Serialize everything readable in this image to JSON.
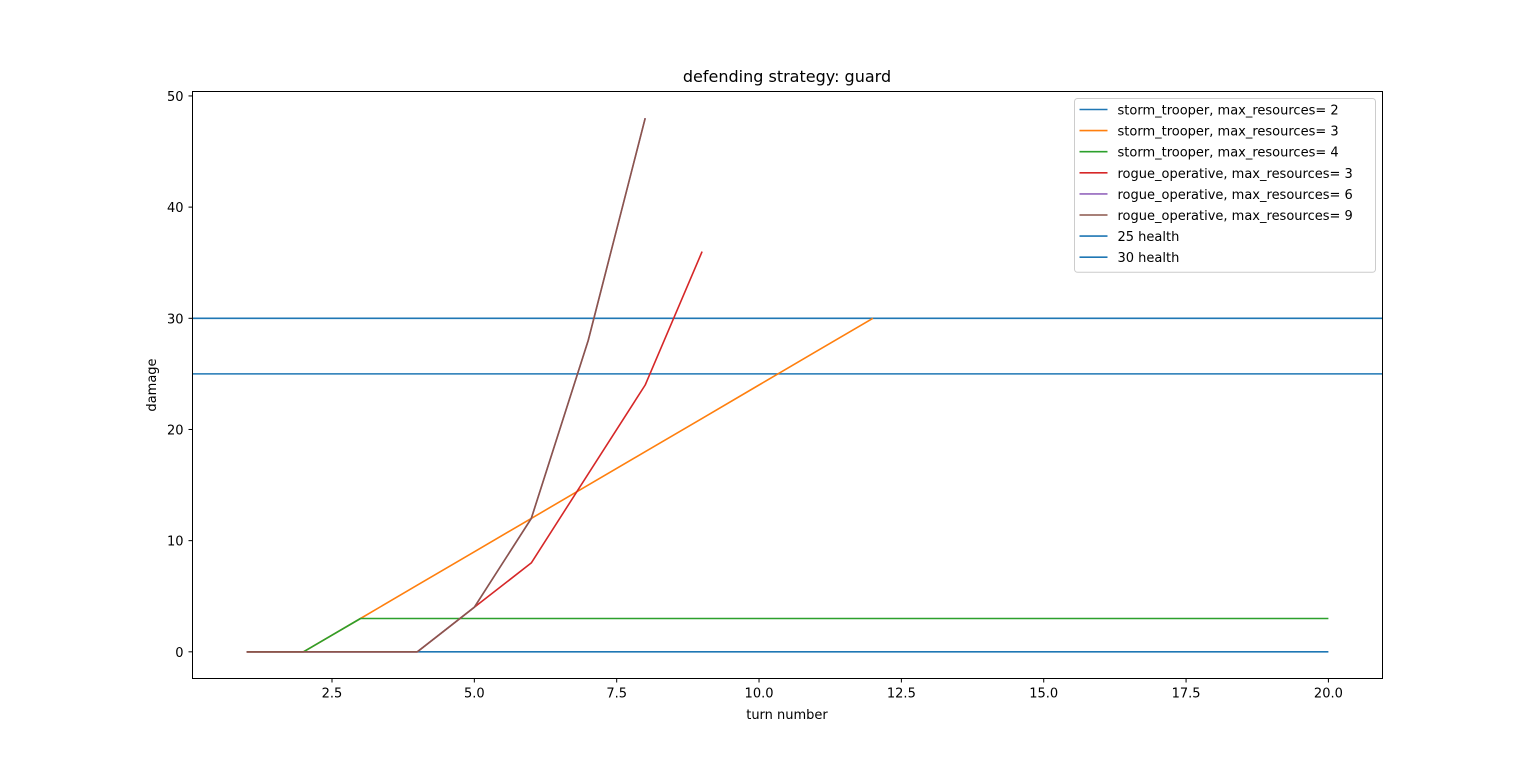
{
  "chart_data": {
    "type": "line",
    "title": "defending strategy: guard",
    "xlabel": "turn number",
    "ylabel": "damage",
    "xlim": [
      0.05,
      20.95
    ],
    "ylim": [
      -2.4,
      50.4
    ],
    "xticks": [
      2.5,
      5.0,
      7.5,
      10.0,
      12.5,
      15.0,
      17.5,
      20.0
    ],
    "xtick_labels": [
      "2.5",
      "5.0",
      "7.5",
      "10.0",
      "12.5",
      "15.0",
      "17.5",
      "20.0"
    ],
    "yticks": [
      0,
      10,
      20,
      30,
      40,
      50
    ],
    "ytick_labels": [
      "0",
      "10",
      "20",
      "30",
      "40",
      "50"
    ],
    "grid": false,
    "legend_position": "top-right",
    "series": [
      {
        "name": "storm_trooper, max_resources= 2",
        "color": "#1f77b4",
        "x": [
          1,
          2,
          3,
          4,
          5,
          6,
          7,
          8,
          9,
          10,
          11,
          12,
          13,
          14,
          15,
          16,
          17,
          18,
          19,
          20
        ],
        "y": [
          0,
          0,
          0,
          0,
          0,
          0,
          0,
          0,
          0,
          0,
          0,
          0,
          0,
          0,
          0,
          0,
          0,
          0,
          0,
          0
        ]
      },
      {
        "name": "storm_trooper, max_resources= 3",
        "color": "#ff7f0e",
        "x": [
          1,
          2,
          3,
          4,
          5,
          6,
          7,
          8,
          9,
          10,
          11,
          12
        ],
        "y": [
          0,
          0,
          3,
          6,
          9,
          12,
          15,
          18,
          21,
          24,
          27,
          30
        ]
      },
      {
        "name": "storm_trooper, max_resources= 4",
        "color": "#2ca02c",
        "x": [
          1,
          2,
          3,
          4,
          5,
          6,
          7,
          8,
          9,
          10,
          11,
          12,
          13,
          14,
          15,
          16,
          17,
          18,
          19,
          20
        ],
        "y": [
          0,
          0,
          3,
          3,
          3,
          3,
          3,
          3,
          3,
          3,
          3,
          3,
          3,
          3,
          3,
          3,
          3,
          3,
          3,
          3
        ]
      },
      {
        "name": "rogue_operative, max_resources= 3",
        "color": "#d62728",
        "x": [
          1,
          2,
          3,
          4,
          5,
          6,
          7,
          8,
          9
        ],
        "y": [
          0,
          0,
          0,
          0,
          4,
          8,
          16,
          24,
          36
        ]
      },
      {
        "name": "rogue_operative, max_resources= 6",
        "color": "#9467bd",
        "x": [
          1,
          2,
          3,
          4,
          5,
          6,
          7,
          8
        ],
        "y": [
          0,
          0,
          0,
          0,
          4,
          12,
          28,
          48
        ]
      },
      {
        "name": "rogue_operative, max_resources= 9",
        "color": "#8c564b",
        "x": [
          1,
          2,
          3,
          4,
          5,
          6,
          7,
          8
        ],
        "y": [
          0,
          0,
          0,
          0,
          4,
          12,
          28,
          48
        ]
      }
    ],
    "hlines": [
      {
        "name": "25 health",
        "y": 25,
        "color": "#1f77b4"
      },
      {
        "name": "30 health",
        "y": 30,
        "color": "#1f77b4"
      }
    ]
  }
}
